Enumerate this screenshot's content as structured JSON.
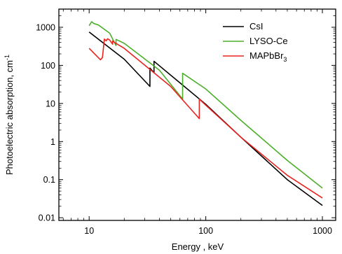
{
  "chart_data": {
    "type": "line",
    "title": "",
    "xlabel": "Energy , keV",
    "ylabel": "Photoelectric absorption, cm",
    "ylabel_superscript": "-1",
    "x_scale": "log",
    "y_scale": "log",
    "xlim": [
      5.5,
      1300
    ],
    "ylim": [
      0.0085,
      3000
    ],
    "x_ticks": [
      {
        "value": 10,
        "label": "10"
      },
      {
        "value": 100,
        "label": "100"
      },
      {
        "value": 1000,
        "label": "1000"
      }
    ],
    "y_ticks": [
      {
        "value": 0.01,
        "label": "0.01"
      },
      {
        "value": 0.1,
        "label": "0.1"
      },
      {
        "value": 1,
        "label": "1"
      },
      {
        "value": 10,
        "label": "10"
      },
      {
        "value": 100,
        "label": "100"
      },
      {
        "value": 1000,
        "label": "1000"
      }
    ],
    "grid": false,
    "legend": "top-right",
    "series": [
      {
        "name": "CsI",
        "color": "#000000",
        "points": [
          [
            10,
            750
          ],
          [
            20,
            145
          ],
          [
            33.2,
            28
          ],
          [
            33.2,
            85
          ],
          [
            35.98,
            64
          ],
          [
            35.98,
            128
          ],
          [
            100,
            9.5
          ],
          [
            200,
            1.3
          ],
          [
            500,
            0.1
          ],
          [
            1000,
            0.021
          ]
        ]
      },
      {
        "name": "LYSO-Ce",
        "color": "#4caf2a",
        "points": [
          [
            10,
            1100
          ],
          [
            10.5,
            1400
          ],
          [
            11,
            1250
          ],
          [
            12,
            1150
          ],
          [
            15,
            700
          ],
          [
            17.0,
            330
          ],
          [
            17.0,
            480
          ],
          [
            20,
            380
          ],
          [
            40,
            75
          ],
          [
            63.3,
            13
          ],
          [
            63.3,
            62
          ],
          [
            100,
            24
          ],
          [
            200,
            3.6
          ],
          [
            500,
            0.32
          ],
          [
            1000,
            0.06
          ]
        ]
      },
      {
        "name": "MAPbBr",
        "name_subscript": "3",
        "color": "#e8231f",
        "points": [
          [
            10,
            280
          ],
          [
            12.5,
            140
          ],
          [
            13.0,
            160
          ],
          [
            13.5,
            490
          ],
          [
            14.0,
            440
          ],
          [
            14.4,
            500
          ],
          [
            15.0,
            460
          ],
          [
            15.9,
            360
          ],
          [
            15.9,
            440
          ],
          [
            16.5,
            400
          ],
          [
            20,
            280
          ],
          [
            50,
            28
          ],
          [
            88,
            4
          ],
          [
            88,
            13
          ],
          [
            100,
            9
          ],
          [
            200,
            1.3
          ],
          [
            500,
            0.13
          ],
          [
            1000,
            0.033
          ]
        ]
      }
    ]
  }
}
